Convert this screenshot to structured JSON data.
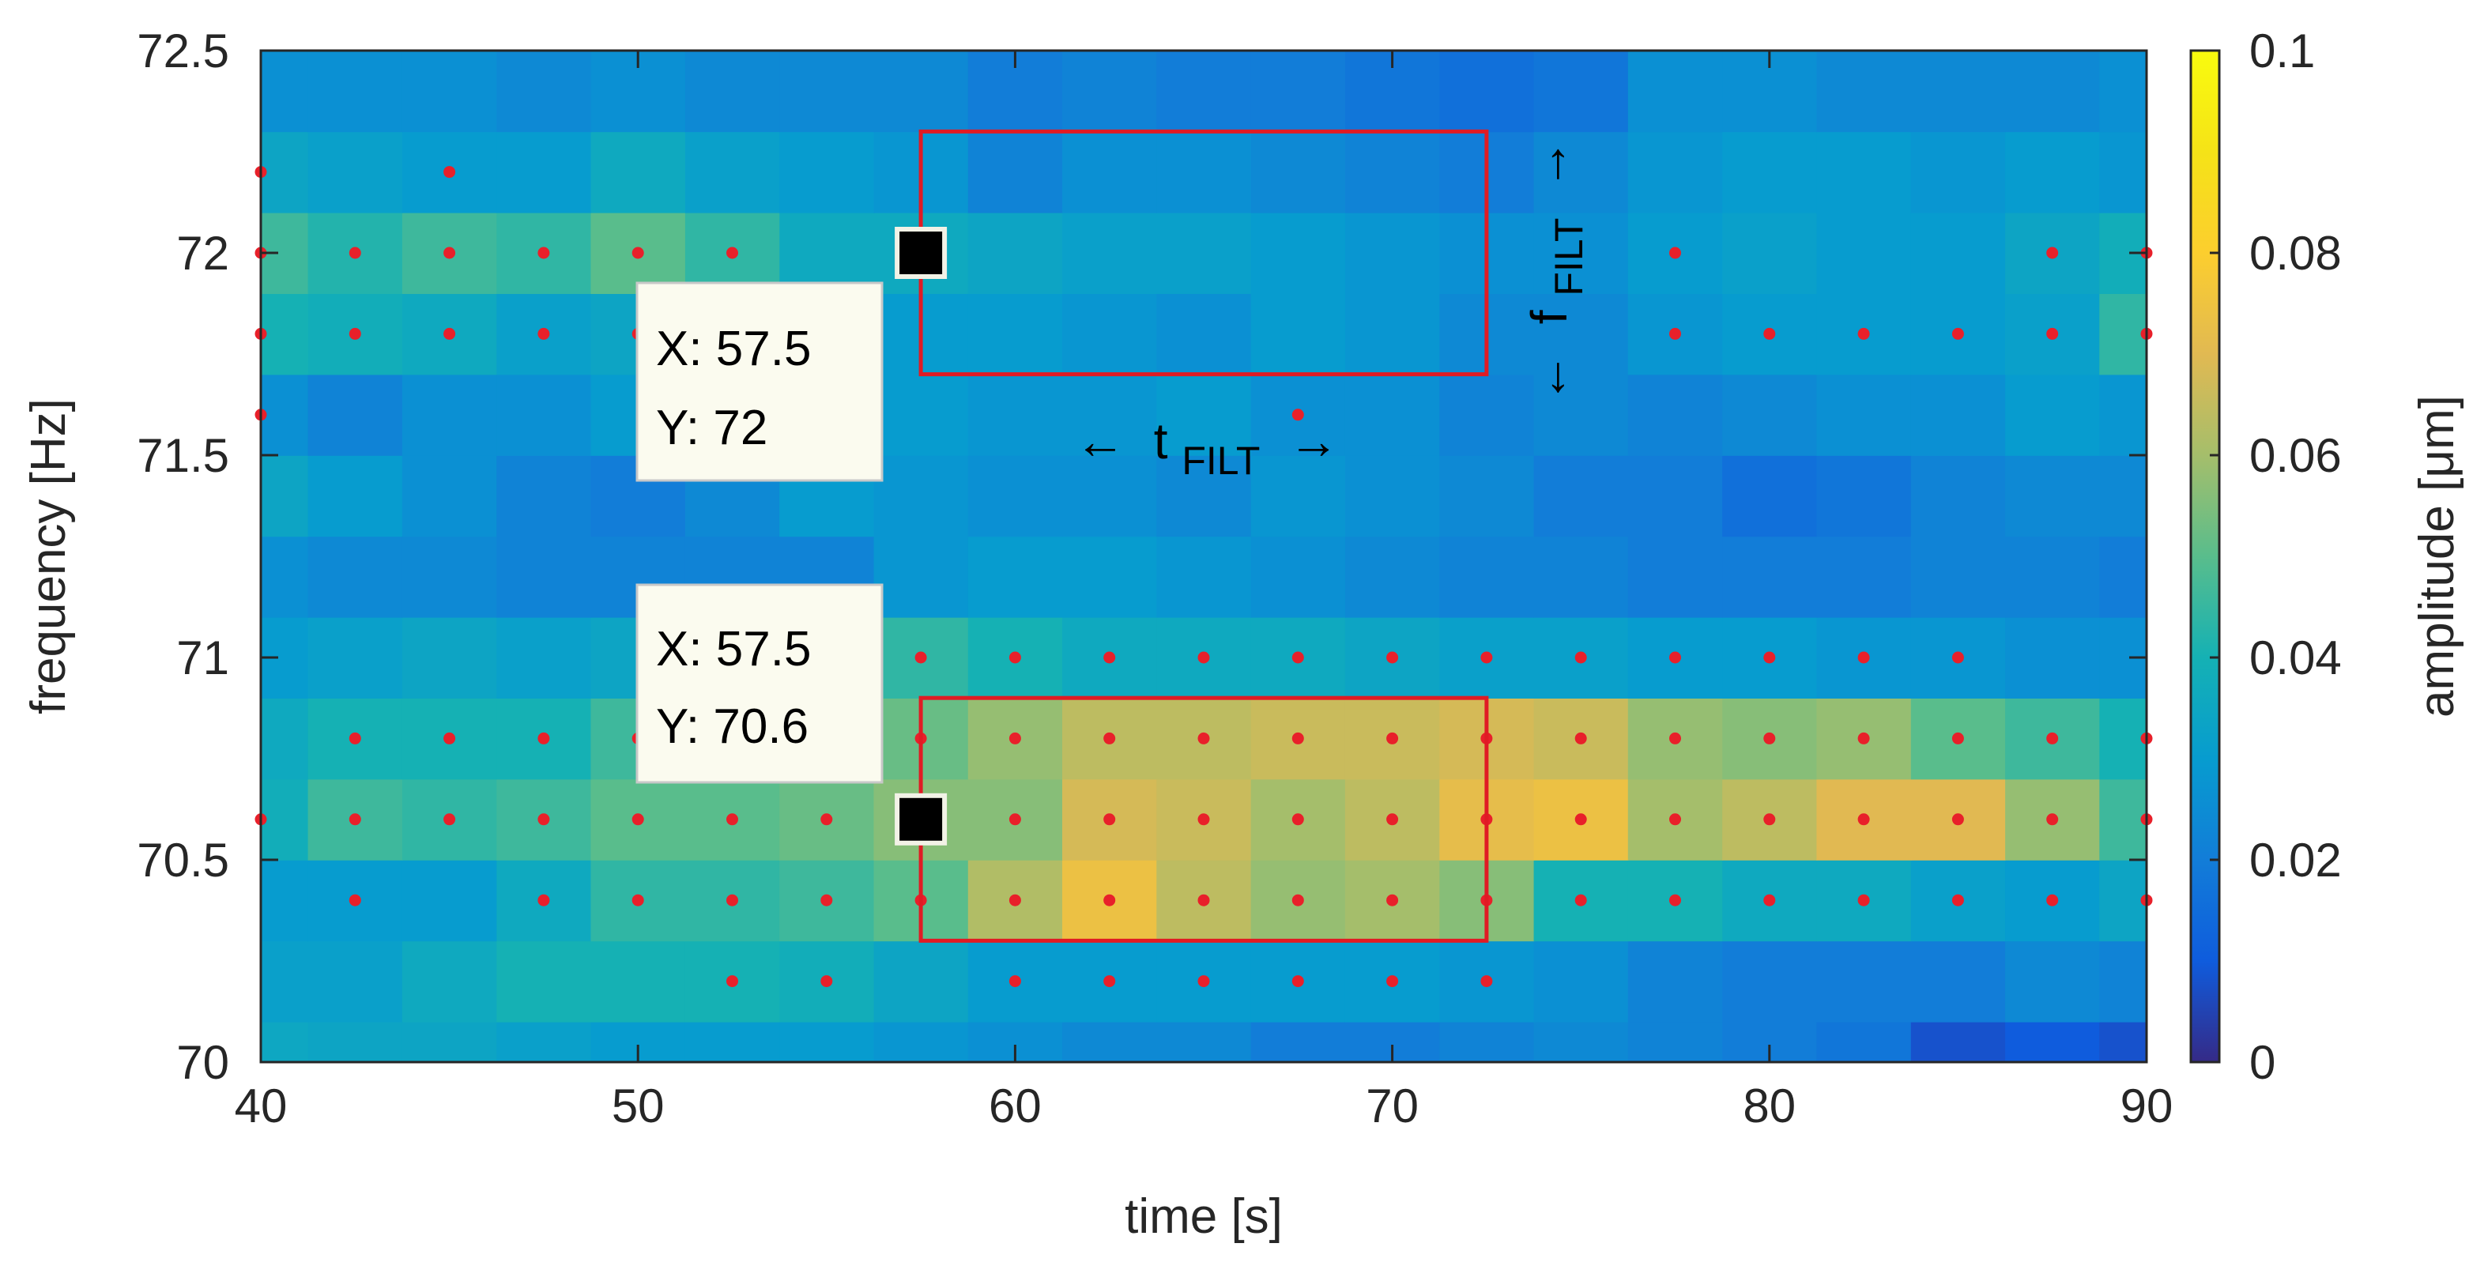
{
  "chart_data": {
    "type": "heatmap",
    "title": "",
    "xlabel": "time [s]",
    "ylabel": "frequency [Hz]",
    "colorbar_label": "amplitude [μm]",
    "colormap": "parula",
    "xlim": [
      40,
      90
    ],
    "ylim": [
      70,
      72.5
    ],
    "clim": [
      0,
      0.1
    ],
    "x_ticks": [
      40,
      50,
      60,
      70,
      80,
      90
    ],
    "x_tick_labels": [
      "40",
      "50",
      "60",
      "70",
      "80",
      "90"
    ],
    "y_ticks": [
      70,
      70.5,
      71,
      71.5,
      72,
      72.5
    ],
    "y_tick_labels": [
      "70",
      "70.5",
      "71",
      "71.5",
      "72",
      "72.5"
    ],
    "c_ticks": [
      0,
      0.02,
      0.04,
      0.06,
      0.08,
      0.1
    ],
    "c_tick_labels": [
      "0",
      "0.02",
      "0.04",
      "0.06",
      "0.08",
      "0.1"
    ],
    "time_bins": [
      40,
      42.5,
      45,
      47.5,
      50,
      52.5,
      55,
      57.5,
      60,
      62.5,
      65,
      67.5,
      70,
      72.5,
      75,
      77.5,
      80,
      82.5,
      85,
      87.5,
      90
    ],
    "freq_bins": [
      70,
      70.2,
      70.4,
      70.6,
      70.8,
      71,
      71.2,
      71.4,
      71.6,
      71.8,
      72,
      72.2,
      72.4,
      72.6
    ],
    "amplitude": [
      [
        0.035,
        0.034,
        0.034,
        0.032,
        0.03,
        0.03,
        0.03,
        0.028,
        0.026,
        0.024,
        0.024,
        0.02,
        0.02,
        0.022,
        0.024,
        0.022,
        0.02,
        0.018,
        0.008,
        0.01,
        0.008
      ],
      [
        0.032,
        0.032,
        0.036,
        0.04,
        0.04,
        0.04,
        0.038,
        0.034,
        0.03,
        0.03,
        0.03,
        0.03,
        0.03,
        0.028,
        0.026,
        0.022,
        0.02,
        0.02,
        0.02,
        0.024,
        0.022
      ],
      [
        0.03,
        0.03,
        0.03,
        0.036,
        0.044,
        0.044,
        0.046,
        0.05,
        0.062,
        0.074,
        0.064,
        0.058,
        0.06,
        0.056,
        0.04,
        0.04,
        0.036,
        0.036,
        0.032,
        0.03,
        0.034
      ],
      [
        0.038,
        0.046,
        0.044,
        0.046,
        0.05,
        0.05,
        0.052,
        0.056,
        0.056,
        0.068,
        0.066,
        0.06,
        0.064,
        0.072,
        0.074,
        0.06,
        0.064,
        0.07,
        0.07,
        0.058,
        0.046
      ],
      [
        0.036,
        0.04,
        0.04,
        0.04,
        0.046,
        0.046,
        0.048,
        0.052,
        0.058,
        0.064,
        0.064,
        0.066,
        0.066,
        0.068,
        0.066,
        0.058,
        0.056,
        0.058,
        0.05,
        0.046,
        0.04
      ],
      [
        0.03,
        0.032,
        0.034,
        0.032,
        0.034,
        0.036,
        0.04,
        0.044,
        0.04,
        0.036,
        0.036,
        0.036,
        0.034,
        0.032,
        0.032,
        0.03,
        0.03,
        0.028,
        0.028,
        0.026,
        0.026
      ],
      [
        0.026,
        0.024,
        0.024,
        0.022,
        0.022,
        0.022,
        0.022,
        0.028,
        0.03,
        0.03,
        0.028,
        0.026,
        0.024,
        0.022,
        0.022,
        0.02,
        0.02,
        0.02,
        0.022,
        0.022,
        0.02
      ],
      [
        0.034,
        0.03,
        0.026,
        0.022,
        0.02,
        0.024,
        0.03,
        0.028,
        0.026,
        0.026,
        0.024,
        0.028,
        0.026,
        0.024,
        0.02,
        0.02,
        0.016,
        0.018,
        0.022,
        0.024,
        0.024
      ],
      [
        0.026,
        0.022,
        0.026,
        0.026,
        0.03,
        0.03,
        0.032,
        0.03,
        0.028,
        0.028,
        0.03,
        0.026,
        0.026,
        0.022,
        0.024,
        0.022,
        0.024,
        0.026,
        0.026,
        0.03,
        0.028
      ],
      [
        0.04,
        0.038,
        0.036,
        0.032,
        0.034,
        0.03,
        0.032,
        0.03,
        0.03,
        0.028,
        0.026,
        0.03,
        0.028,
        0.024,
        0.024,
        0.028,
        0.03,
        0.03,
        0.03,
        0.032,
        0.044
      ],
      [
        0.046,
        0.042,
        0.046,
        0.044,
        0.05,
        0.044,
        0.036,
        0.036,
        0.034,
        0.032,
        0.032,
        0.03,
        0.028,
        0.026,
        0.026,
        0.03,
        0.032,
        0.03,
        0.03,
        0.034,
        0.038
      ],
      [
        0.034,
        0.032,
        0.03,
        0.03,
        0.036,
        0.032,
        0.03,
        0.028,
        0.022,
        0.026,
        0.026,
        0.024,
        0.022,
        0.02,
        0.024,
        0.028,
        0.03,
        0.03,
        0.028,
        0.03,
        0.028
      ],
      [
        0.026,
        0.026,
        0.026,
        0.024,
        0.026,
        0.024,
        0.024,
        0.024,
        0.02,
        0.022,
        0.02,
        0.02,
        0.018,
        0.016,
        0.018,
        0.026,
        0.026,
        0.024,
        0.024,
        0.024,
        0.026
      ]
    ],
    "peak_points": [
      {
        "t": 40,
        "f": 72.2
      },
      {
        "t": 45,
        "f": 72.2
      },
      {
        "t": 40,
        "f": 71.6
      },
      {
        "t": 67.5,
        "f": 71.6
      },
      {
        "t": 40,
        "f": 72
      },
      {
        "t": 42.5,
        "f": 72
      },
      {
        "t": 45,
        "f": 72
      },
      {
        "t": 47.5,
        "f": 72
      },
      {
        "t": 50,
        "f": 72
      },
      {
        "t": 52.5,
        "f": 72
      },
      {
        "t": 77.5,
        "f": 72
      },
      {
        "t": 87.5,
        "f": 72
      },
      {
        "t": 90,
        "f": 72
      },
      {
        "t": 40,
        "f": 71.8
      },
      {
        "t": 42.5,
        "f": 71.8
      },
      {
        "t": 45,
        "f": 71.8
      },
      {
        "t": 47.5,
        "f": 71.8
      },
      {
        "t": 50,
        "f": 71.8
      },
      {
        "t": 77.5,
        "f": 71.8
      },
      {
        "t": 80,
        "f": 71.8
      },
      {
        "t": 82.5,
        "f": 71.8
      },
      {
        "t": 85,
        "f": 71.8
      },
      {
        "t": 87.5,
        "f": 71.8
      },
      {
        "t": 90,
        "f": 71.8
      },
      {
        "t": 57.5,
        "f": 71
      },
      {
        "t": 60,
        "f": 71
      },
      {
        "t": 62.5,
        "f": 71
      },
      {
        "t": 65,
        "f": 71
      },
      {
        "t": 67.5,
        "f": 71
      },
      {
        "t": 70,
        "f": 71
      },
      {
        "t": 72.5,
        "f": 71
      },
      {
        "t": 75,
        "f": 71
      },
      {
        "t": 77.5,
        "f": 71
      },
      {
        "t": 80,
        "f": 71
      },
      {
        "t": 82.5,
        "f": 71
      },
      {
        "t": 85,
        "f": 71
      },
      {
        "t": 42.5,
        "f": 70.8
      },
      {
        "t": 45,
        "f": 70.8
      },
      {
        "t": 47.5,
        "f": 70.8
      },
      {
        "t": 50,
        "f": 70.8
      },
      {
        "t": 57.5,
        "f": 70.8
      },
      {
        "t": 60,
        "f": 70.8
      },
      {
        "t": 62.5,
        "f": 70.8
      },
      {
        "t": 65,
        "f": 70.8
      },
      {
        "t": 67.5,
        "f": 70.8
      },
      {
        "t": 70,
        "f": 70.8
      },
      {
        "t": 72.5,
        "f": 70.8
      },
      {
        "t": 75,
        "f": 70.8
      },
      {
        "t": 77.5,
        "f": 70.8
      },
      {
        "t": 80,
        "f": 70.8
      },
      {
        "t": 82.5,
        "f": 70.8
      },
      {
        "t": 85,
        "f": 70.8
      },
      {
        "t": 87.5,
        "f": 70.8
      },
      {
        "t": 90,
        "f": 70.8
      },
      {
        "t": 40,
        "f": 70.6
      },
      {
        "t": 42.5,
        "f": 70.6
      },
      {
        "t": 45,
        "f": 70.6
      },
      {
        "t": 47.5,
        "f": 70.6
      },
      {
        "t": 50,
        "f": 70.6
      },
      {
        "t": 52.5,
        "f": 70.6
      },
      {
        "t": 55,
        "f": 70.6
      },
      {
        "t": 60,
        "f": 70.6
      },
      {
        "t": 62.5,
        "f": 70.6
      },
      {
        "t": 65,
        "f": 70.6
      },
      {
        "t": 67.5,
        "f": 70.6
      },
      {
        "t": 70,
        "f": 70.6
      },
      {
        "t": 72.5,
        "f": 70.6
      },
      {
        "t": 75,
        "f": 70.6
      },
      {
        "t": 77.5,
        "f": 70.6
      },
      {
        "t": 80,
        "f": 70.6
      },
      {
        "t": 82.5,
        "f": 70.6
      },
      {
        "t": 85,
        "f": 70.6
      },
      {
        "t": 87.5,
        "f": 70.6
      },
      {
        "t": 90,
        "f": 70.6
      },
      {
        "t": 42.5,
        "f": 70.4
      },
      {
        "t": 47.5,
        "f": 70.4
      },
      {
        "t": 50,
        "f": 70.4
      },
      {
        "t": 52.5,
        "f": 70.4
      },
      {
        "t": 55,
        "f": 70.4
      },
      {
        "t": 57.5,
        "f": 70.4
      },
      {
        "t": 60,
        "f": 70.4
      },
      {
        "t": 62.5,
        "f": 70.4
      },
      {
        "t": 65,
        "f": 70.4
      },
      {
        "t": 67.5,
        "f": 70.4
      },
      {
        "t": 70,
        "f": 70.4
      },
      {
        "t": 72.5,
        "f": 70.4
      },
      {
        "t": 75,
        "f": 70.4
      },
      {
        "t": 77.5,
        "f": 70.4
      },
      {
        "t": 80,
        "f": 70.4
      },
      {
        "t": 82.5,
        "f": 70.4
      },
      {
        "t": 85,
        "f": 70.4
      },
      {
        "t": 87.5,
        "f": 70.4
      },
      {
        "t": 90,
        "f": 70.4
      },
      {
        "t": 52.5,
        "f": 70.2
      },
      {
        "t": 55,
        "f": 70.2
      },
      {
        "t": 60,
        "f": 70.2
      },
      {
        "t": 62.5,
        "f": 70.2
      },
      {
        "t": 65,
        "f": 70.2
      },
      {
        "t": 67.5,
        "f": 70.2
      },
      {
        "t": 70,
        "f": 70.2
      },
      {
        "t": 72.5,
        "f": 70.2
      }
    ],
    "filter_windows": [
      {
        "t_start": 57.5,
        "t_end": 72.5,
        "f_low": 71.7,
        "f_high": 72.3
      },
      {
        "t_start": 57.5,
        "t_end": 72.5,
        "f_low": 70.3,
        "f_high": 70.9
      }
    ],
    "datatips": [
      {
        "x": 57.5,
        "y": 72,
        "x_text": "X: 57.5",
        "y_text": "Y: 72"
      },
      {
        "x": 57.5,
        "y": 70.6,
        "x_text": "X: 57.5",
        "y_text": "Y: 70.6"
      }
    ],
    "annotations": {
      "t_filt": {
        "arrow_left": "←",
        "label": "t",
        "sub": "FILT",
        "arrow_right": "→"
      },
      "f_filt": {
        "arrow_low": "←",
        "label": "f",
        "sub": "FILT",
        "arrow_high": "→"
      }
    },
    "colors": {
      "peak_marker": "#e8202a",
      "filter_box": "#e01b24",
      "datatip_bg": "#fbfbef",
      "datatip_border": "#cccccc",
      "axis": "#262626"
    }
  }
}
